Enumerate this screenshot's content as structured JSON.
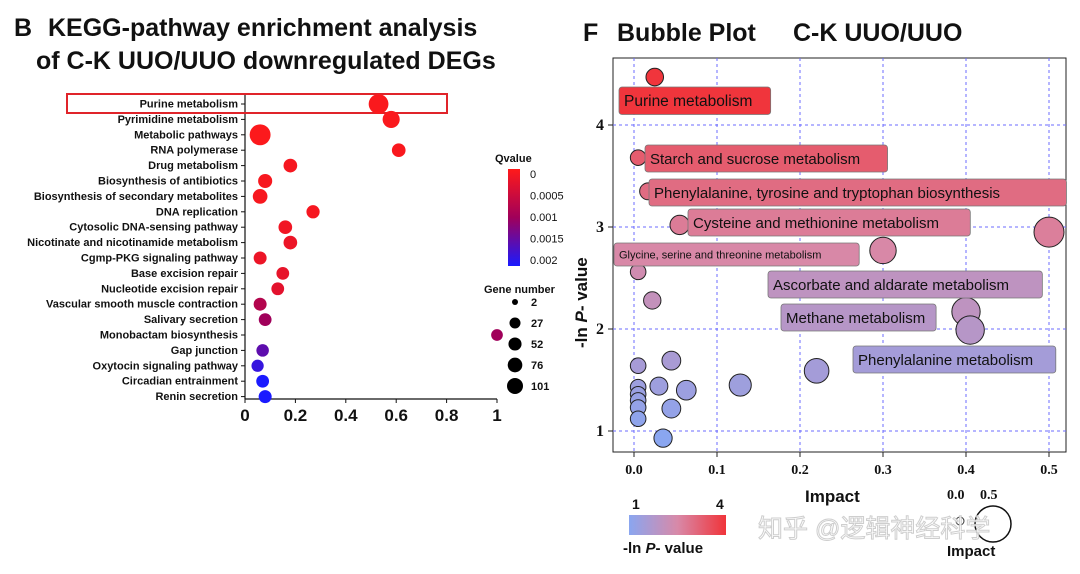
{
  "panel_b": {
    "letter": "B",
    "title_line1": "KEGG-pathway enrichment analysis",
    "title_line2": "of C-K UUO/UUO downregulated DEGs",
    "qvalue_title": "Qvalue",
    "qvalue_ticks": [
      "0",
      "0.0005",
      "0.001",
      "0.0015",
      "0.002"
    ],
    "gene_title": "Gene number",
    "gene_ticks": [
      "2",
      "27",
      "52",
      "76",
      "101"
    ],
    "colors": {
      "low_q": "#ff1a1a",
      "high_q": "#1a1aff",
      "mid": "#8b0080",
      "highlight_box": "#e0242a"
    }
  },
  "panel_f": {
    "letter": "F",
    "title": "Bubble Plot",
    "subtitle": "C-K UUO/UUO",
    "ylabel_prefix": "-ln ",
    "ylabel_italic": "P",
    "ylabel_suffix": "- value",
    "xlabel": "Impact",
    "colorbar_min": "1",
    "colorbar_max": "4",
    "colorbar_label_prefix": "-ln ",
    "colorbar_label_italic": "P",
    "colorbar_label_suffix": "- value",
    "size_legend_label": "Impact",
    "size_legend_ticks": [
      "0.0",
      "0.5"
    ],
    "colors": {
      "low": "#8aa6f0",
      "high": "#f0343a",
      "grid": "#6b6bff"
    }
  },
  "watermark": "知乎 @逻辑神经科学",
  "chart_data": [
    {
      "type": "scatter",
      "title": "KEGG-pathway enrichment analysis of C-K UUO/UUO downregulated DEGs",
      "xlim": [
        0,
        1
      ],
      "x_ticks": [
        "0",
        "0.2",
        "0.4",
        "0.6",
        "0.8",
        "1"
      ],
      "grid": false,
      "legend": "right",
      "highlight": "Purine metabolism",
      "categories": [
        "Purine metabolism",
        "Pyrimidine metabolism",
        "Metabolic pathways",
        "RNA polymerase",
        "Drug metabolism",
        "Biosynthesis of antibiotics",
        "Biosynthesis of secondary metabolites",
        "DNA replication",
        "Cytosolic DNA-sensing pathway",
        "Nicotinate and nicotinamide metabolism",
        "Cgmp-PKG signaling pathway",
        "Base excision repair",
        "Nucleotide excision repair",
        "Vascular smooth muscle contraction",
        "Salivary secretion",
        "Monobactam biosynthesis",
        "Gap junction",
        "Oxytocin signaling pathway",
        "Circadian entrainment",
        "Renin secretion"
      ],
      "x": [
        0.53,
        0.58,
        0.06,
        0.61,
        0.18,
        0.08,
        0.06,
        0.27,
        0.16,
        0.18,
        0.06,
        0.15,
        0.13,
        0.06,
        0.08,
        1.0,
        0.07,
        0.05,
        0.07,
        0.08
      ],
      "gene_number": [
        60,
        40,
        70,
        20,
        20,
        22,
        25,
        18,
        20,
        20,
        17,
        16,
        16,
        17,
        16,
        12,
        15,
        14,
        16,
        17
      ],
      "qvalue": [
        5e-05,
        5e-05,
        3e-05,
        6e-05,
        0.0001,
        8e-05,
        8e-05,
        0.0001,
        0.00015,
        0.0002,
        0.0002,
        0.00025,
        0.0003,
        0.0008,
        0.001,
        0.001,
        0.0015,
        0.0018,
        0.002,
        0.002
      ],
      "qvalue_range": [
        0,
        0.002
      ],
      "gene_number_ticks": [
        2,
        27,
        52,
        76,
        101
      ]
    },
    {
      "type": "scatter",
      "title": "Bubble Plot C-K UUO/UUO",
      "xlabel": "Impact",
      "ylabel": "-ln P- value",
      "xlim": [
        0,
        0.5
      ],
      "ylim": [
        1,
        4.5
      ],
      "x_ticks": [
        "0.0",
        "0.1",
        "0.2",
        "0.3",
        "0.4",
        "0.5"
      ],
      "y_ticks": [
        "1",
        "2",
        "3",
        "4"
      ],
      "grid": true,
      "points": [
        {
          "x": 0.025,
          "y": 4.47,
          "label": "Purine metabolism"
        },
        {
          "x": 0.005,
          "y": 3.68,
          "label": "Starch and sucrose metabolism"
        },
        {
          "x": 0.017,
          "y": 3.35,
          "label": "Phenylalanine, tyrosine and tryptophan biosynthesis"
        },
        {
          "x": 0.055,
          "y": 3.02,
          "label": "Cysteine and methionine metabolism"
        },
        {
          "x": 0.5,
          "y": 2.95,
          "label": ""
        },
        {
          "x": 0.3,
          "y": 2.77,
          "label": "Glycine, serine and threonine metabolism"
        },
        {
          "x": 0.005,
          "y": 2.56,
          "label": ""
        },
        {
          "x": 0.4,
          "y": 2.17,
          "label": "Ascorbate and aldarate metabolism"
        },
        {
          "x": 0.022,
          "y": 2.28,
          "label": ""
        },
        {
          "x": 0.405,
          "y": 1.99,
          "label": "Methane metabolism"
        },
        {
          "x": 0.22,
          "y": 1.59,
          "label": "Phenylalanine metabolism"
        },
        {
          "x": 0.045,
          "y": 1.69,
          "label": ""
        },
        {
          "x": 0.005,
          "y": 1.64,
          "label": ""
        },
        {
          "x": 0.128,
          "y": 1.45,
          "label": ""
        },
        {
          "x": 0.03,
          "y": 1.44,
          "label": ""
        },
        {
          "x": 0.063,
          "y": 1.4,
          "label": ""
        },
        {
          "x": 0.005,
          "y": 1.43,
          "label": ""
        },
        {
          "x": 0.005,
          "y": 1.36,
          "label": ""
        },
        {
          "x": 0.005,
          "y": 1.3,
          "label": ""
        },
        {
          "x": 0.005,
          "y": 1.23,
          "label": ""
        },
        {
          "x": 0.045,
          "y": 1.22,
          "label": ""
        },
        {
          "x": 0.005,
          "y": 1.12,
          "label": ""
        },
        {
          "x": 0.035,
          "y": 0.93,
          "label": ""
        }
      ]
    }
  ]
}
